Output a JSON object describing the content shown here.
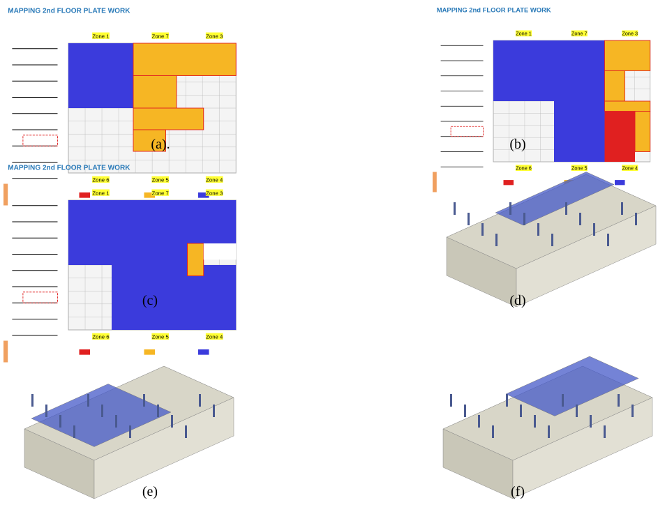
{
  "figures": [
    {
      "caption": "(a).",
      "title": "MAPPING 2nd FLOOR PLATE WORK",
      "zones_top": [
        "Zone 1",
        "Zone 7",
        "Zone 3"
      ],
      "zones_bottom": [
        "Zone 6",
        "Zone 5",
        "Zone 4"
      ]
    },
    {
      "caption": "(b)",
      "title": "MAPPING 2nd FLOOR PLATE WORK",
      "zones_top": [
        "Zone 1",
        "Zone 7",
        "Zone 3"
      ],
      "zones_bottom": [
        "Zone 6",
        "Zone 5",
        "Zone 4"
      ]
    },
    {
      "caption": "(c)",
      "title": "MAPPING 2nd FLOOR PLATE WORK",
      "zones_top": [
        "Zone 1",
        "Zone 7",
        "Zone 3"
      ],
      "zones_bottom": [
        "Zone 6",
        "Zone 5",
        "Zone 4"
      ]
    },
    {
      "caption": "(d)"
    },
    {
      "caption": "(e)"
    },
    {
      "caption": "(f)"
    }
  ]
}
